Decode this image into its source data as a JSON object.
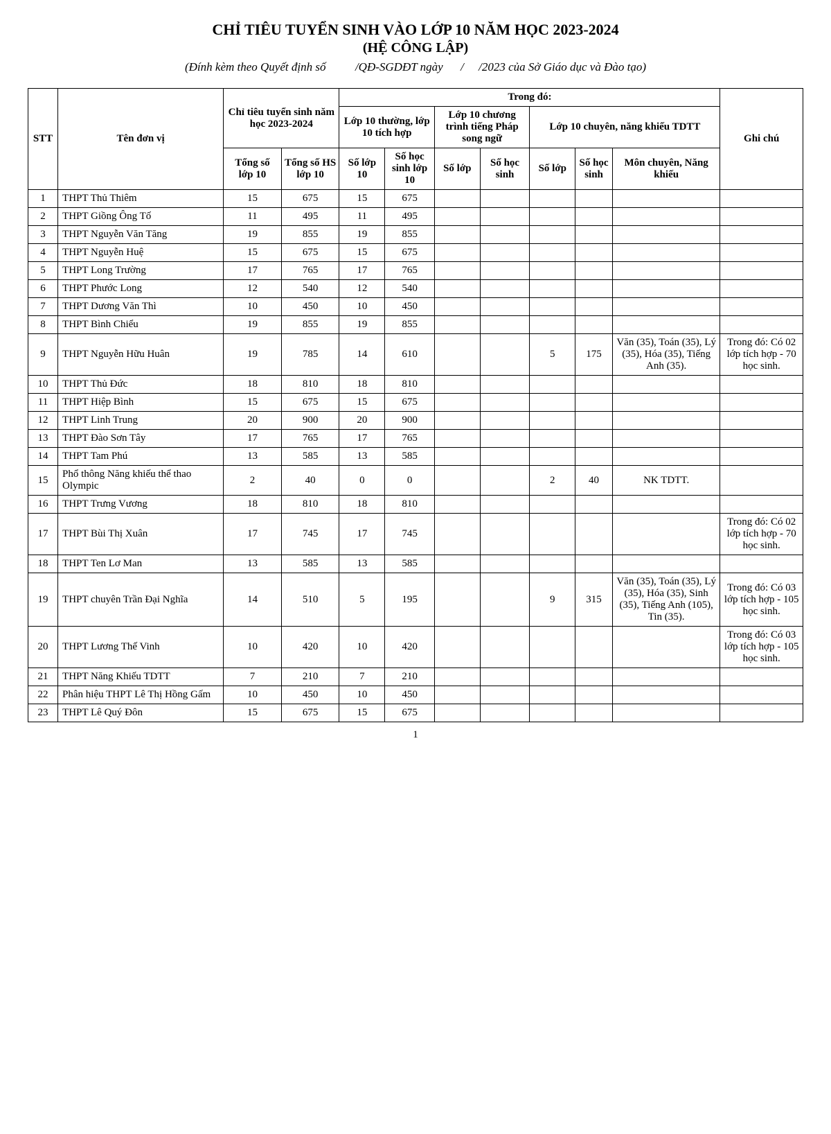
{
  "title": "CHỈ TIÊU TUYỂN SINH VÀO LỚP 10 NĂM HỌC 2023-2024",
  "subtitle": "(HỆ CÔNG LẬP)",
  "attachment_line": "(Đính kèm theo Quyết định số          /QĐ-SGDĐT ngày      /     /2023 của Sở Giáo dục và Đào tạo)",
  "page_number": "1",
  "headers": {
    "stt": "STT",
    "ten_don_vi": "Tên đơn vị",
    "chi_tieu": "Chỉ tiêu tuyển sinh năm học 2023-2024",
    "trong_do": "Trong đó:",
    "ghi_chu": "Ghi chú",
    "lop10_thuong": "Lớp 10 thường, lớp 10 tích hợp",
    "lop10_phap": "Lớp 10 chương trình tiếng Pháp song ngữ",
    "lop10_chuyen": "Lớp 10 chuyên, năng khiếu TDTT",
    "tongso_lop": "Tổng số lớp 10",
    "tongso_hs": "Tổng số HS lớp 10",
    "so_lop10": "Số lớp 10",
    "so_hs_lop10": "Số học sinh lớp 10",
    "so_lop": "Số lớp",
    "so_hoc_sinh": "Số học sinh",
    "mon_chuyen": "Môn chuyên, Năng khiếu"
  },
  "rows": [
    {
      "stt": "1",
      "name": "THPT Thủ Thiêm",
      "tongsl": "15",
      "tonghs": "675",
      "tl": "15",
      "th": "675",
      "pl": "",
      "ph": "",
      "cl": "",
      "ch": "",
      "mon": "",
      "ghichu": ""
    },
    {
      "stt": "2",
      "name": "THPT Giồng Ông Tố",
      "tongsl": "11",
      "tonghs": "495",
      "tl": "11",
      "th": "495",
      "pl": "",
      "ph": "",
      "cl": "",
      "ch": "",
      "mon": "",
      "ghichu": ""
    },
    {
      "stt": "3",
      "name": "THPT Nguyễn Văn Tăng",
      "tongsl": "19",
      "tonghs": "855",
      "tl": "19",
      "th": "855",
      "pl": "",
      "ph": "",
      "cl": "",
      "ch": "",
      "mon": "",
      "ghichu": ""
    },
    {
      "stt": "4",
      "name": "THPT Nguyễn Huệ",
      "tongsl": "15",
      "tonghs": "675",
      "tl": "15",
      "th": "675",
      "pl": "",
      "ph": "",
      "cl": "",
      "ch": "",
      "mon": "",
      "ghichu": ""
    },
    {
      "stt": "5",
      "name": "THPT Long Trường",
      "tongsl": "17",
      "tonghs": "765",
      "tl": "17",
      "th": "765",
      "pl": "",
      "ph": "",
      "cl": "",
      "ch": "",
      "mon": "",
      "ghichu": ""
    },
    {
      "stt": "6",
      "name": "THPT Phước Long",
      "tongsl": "12",
      "tonghs": "540",
      "tl": "12",
      "th": "540",
      "pl": "",
      "ph": "",
      "cl": "",
      "ch": "",
      "mon": "",
      "ghichu": ""
    },
    {
      "stt": "7",
      "name": "THPT Dương Văn Thì",
      "tongsl": "10",
      "tonghs": "450",
      "tl": "10",
      "th": "450",
      "pl": "",
      "ph": "",
      "cl": "",
      "ch": "",
      "mon": "",
      "ghichu": ""
    },
    {
      "stt": "8",
      "name": "THPT Bình Chiểu",
      "tongsl": "19",
      "tonghs": "855",
      "tl": "19",
      "th": "855",
      "pl": "",
      "ph": "",
      "cl": "",
      "ch": "",
      "mon": "",
      "ghichu": ""
    },
    {
      "stt": "9",
      "name": "THPT Nguyễn Hữu Huân",
      "tongsl": "19",
      "tonghs": "785",
      "tl": "14",
      "th": "610",
      "pl": "",
      "ph": "",
      "cl": "5",
      "ch": "175",
      "mon": "Văn (35), Toán (35), Lý (35), Hóa (35), Tiếng Anh (35).",
      "ghichu": "Trong đó: Có 02 lớp tích hợp - 70 học sinh."
    },
    {
      "stt": "10",
      "name": "THPT Thủ Đức",
      "tongsl": "18",
      "tonghs": "810",
      "tl": "18",
      "th": "810",
      "pl": "",
      "ph": "",
      "cl": "",
      "ch": "",
      "mon": "",
      "ghichu": ""
    },
    {
      "stt": "11",
      "name": "THPT Hiệp Bình",
      "tongsl": "15",
      "tonghs": "675",
      "tl": "15",
      "th": "675",
      "pl": "",
      "ph": "",
      "cl": "",
      "ch": "",
      "mon": "",
      "ghichu": ""
    },
    {
      "stt": "12",
      "name": "THPT Linh Trung",
      "tongsl": "20",
      "tonghs": "900",
      "tl": "20",
      "th": "900",
      "pl": "",
      "ph": "",
      "cl": "",
      "ch": "",
      "mon": "",
      "ghichu": ""
    },
    {
      "stt": "13",
      "name": "THPT Đào Sơn Tây",
      "tongsl": "17",
      "tonghs": "765",
      "tl": "17",
      "th": "765",
      "pl": "",
      "ph": "",
      "cl": "",
      "ch": "",
      "mon": "",
      "ghichu": ""
    },
    {
      "stt": "14",
      "name": "THPT Tam Phú",
      "tongsl": "13",
      "tonghs": "585",
      "tl": "13",
      "th": "585",
      "pl": "",
      "ph": "",
      "cl": "",
      "ch": "",
      "mon": "",
      "ghichu": ""
    },
    {
      "stt": "15",
      "name": "Phổ thông Năng khiếu thể thao Olympic",
      "tongsl": "2",
      "tonghs": "40",
      "tl": "0",
      "th": "0",
      "pl": "",
      "ph": "",
      "cl": "2",
      "ch": "40",
      "mon": "NK TDTT.",
      "ghichu": ""
    },
    {
      "stt": "16",
      "name": "THPT Trưng Vương",
      "tongsl": "18",
      "tonghs": "810",
      "tl": "18",
      "th": "810",
      "pl": "",
      "ph": "",
      "cl": "",
      "ch": "",
      "mon": "",
      "ghichu": ""
    },
    {
      "stt": "17",
      "name": "THPT Bùi Thị Xuân",
      "tongsl": "17",
      "tonghs": "745",
      "tl": "17",
      "th": "745",
      "pl": "",
      "ph": "",
      "cl": "",
      "ch": "",
      "mon": "",
      "ghichu": "Trong đó: Có 02 lớp tích hợp - 70 học sinh."
    },
    {
      "stt": "18",
      "name": "THPT Ten Lơ Man",
      "tongsl": "13",
      "tonghs": "585",
      "tl": "13",
      "th": "585",
      "pl": "",
      "ph": "",
      "cl": "",
      "ch": "",
      "mon": "",
      "ghichu": ""
    },
    {
      "stt": "19",
      "name": "THPT chuyên Trần Đại Nghĩa",
      "tongsl": "14",
      "tonghs": "510",
      "tl": "5",
      "th": "195",
      "pl": "",
      "ph": "",
      "cl": "9",
      "ch": "315",
      "mon": "Văn (35), Toán (35), Lý (35), Hóa (35), Sinh (35), Tiếng Anh (105), Tin (35).",
      "ghichu": "Trong đó: Có 03 lớp tích hợp - 105 học sinh."
    },
    {
      "stt": "20",
      "name": "THPT Lương Thế Vinh",
      "tongsl": "10",
      "tonghs": "420",
      "tl": "10",
      "th": "420",
      "pl": "",
      "ph": "",
      "cl": "",
      "ch": "",
      "mon": "",
      "ghichu": "Trong đó: Có 03 lớp tích hợp - 105 học sinh."
    },
    {
      "stt": "21",
      "name": "THPT Năng Khiếu TDTT",
      "tongsl": "7",
      "tonghs": "210",
      "tl": "7",
      "th": "210",
      "pl": "",
      "ph": "",
      "cl": "",
      "ch": "",
      "mon": "",
      "ghichu": ""
    },
    {
      "stt": "22",
      "name": "Phân hiệu THPT Lê Thị Hồng Gấm",
      "tongsl": "10",
      "tonghs": "450",
      "tl": "10",
      "th": "450",
      "pl": "",
      "ph": "",
      "cl": "",
      "ch": "",
      "mon": "",
      "ghichu": ""
    },
    {
      "stt": "23",
      "name": "THPT Lê Quý Đôn",
      "tongsl": "15",
      "tonghs": "675",
      "tl": "15",
      "th": "675",
      "pl": "",
      "ph": "",
      "cl": "",
      "ch": "",
      "mon": "",
      "ghichu": ""
    }
  ]
}
